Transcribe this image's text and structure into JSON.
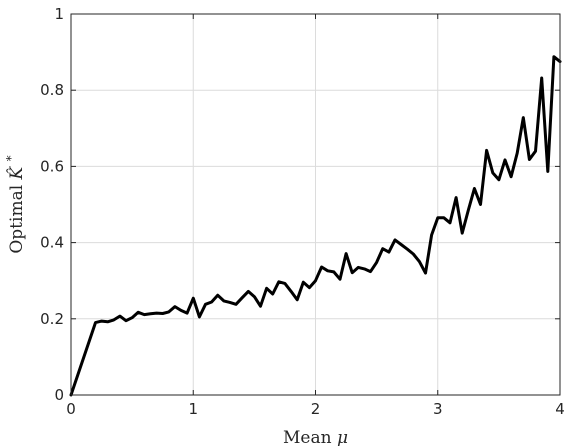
{
  "chart_data": {
    "type": "line",
    "title": "",
    "xlabel": "Mean μ",
    "xlabel_parts": {
      "text": "Mean",
      "symbol": "μ"
    },
    "ylabel": "Optimal K̂*",
    "ylabel_parts": {
      "text": "Optimal",
      "symbol": "K̂",
      "superscript": "*"
    },
    "xlim": [
      0,
      4
    ],
    "ylim": [
      0,
      1
    ],
    "xticks": [
      0,
      1,
      2,
      3,
      4
    ],
    "xtick_labels": [
      "0",
      "1",
      "2",
      "3",
      "4"
    ],
    "yticks": [
      0,
      0.2,
      0.4,
      0.6,
      0.8,
      1
    ],
    "ytick_labels": [
      "0",
      "0.2",
      "0.4",
      "0.6",
      "0.8",
      "1"
    ],
    "grid": true,
    "series": [
      {
        "color": "#000000",
        "x": [
          0,
          0.2,
          0.25,
          0.3,
          0.35,
          0.4,
          0.45,
          0.5,
          0.55,
          0.6,
          0.65,
          0.7,
          0.75,
          0.8,
          0.85,
          0.9,
          0.95,
          1.0,
          1.05,
          1.1,
          1.15,
          1.2,
          1.25,
          1.3,
          1.35,
          1.4,
          1.45,
          1.5,
          1.55,
          1.6,
          1.65,
          1.7,
          1.75,
          1.8,
          1.85,
          1.9,
          1.95,
          2.0,
          2.05,
          2.1,
          2.15,
          2.2,
          2.25,
          2.3,
          2.35,
          2.4,
          2.45,
          2.5,
          2.55,
          2.6,
          2.65,
          2.7,
          2.75,
          2.8,
          2.85,
          2.9,
          2.95,
          3.0,
          3.05,
          3.1,
          3.15,
          3.2,
          3.25,
          3.3,
          3.35,
          3.4,
          3.45,
          3.5,
          3.55,
          3.6,
          3.65,
          3.7,
          3.75,
          3.8,
          3.85,
          3.9,
          3.95,
          4.0
        ],
        "y": [
          0,
          0.19,
          0.194,
          0.192,
          0.197,
          0.207,
          0.195,
          0.203,
          0.217,
          0.211,
          0.213,
          0.215,
          0.214,
          0.218,
          0.232,
          0.222,
          0.215,
          0.254,
          0.205,
          0.238,
          0.244,
          0.262,
          0.247,
          0.243,
          0.238,
          0.255,
          0.272,
          0.258,
          0.233,
          0.28,
          0.265,
          0.297,
          0.293,
          0.272,
          0.25,
          0.296,
          0.282,
          0.3,
          0.336,
          0.326,
          0.323,
          0.304,
          0.371,
          0.321,
          0.335,
          0.331,
          0.324,
          0.348,
          0.384,
          0.375,
          0.407,
          0.395,
          0.383,
          0.37,
          0.35,
          0.32,
          0.42,
          0.465,
          0.465,
          0.452,
          0.518,
          0.425,
          0.485,
          0.542,
          0.5,
          0.642,
          0.583,
          0.565,
          0.617,
          0.573,
          0.635,
          0.728,
          0.618,
          0.64,
          0.832,
          0.587,
          0.888,
          0.875
        ]
      }
    ]
  }
}
